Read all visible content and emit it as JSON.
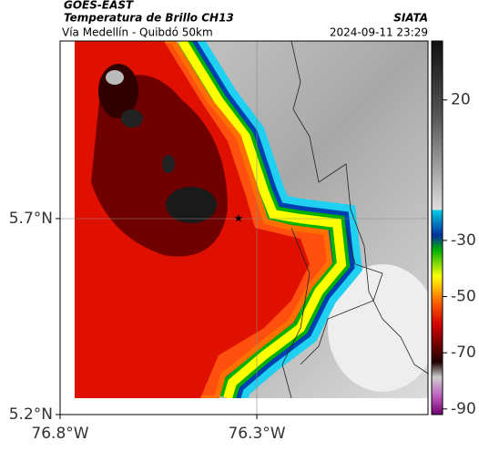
{
  "header": {
    "satellite": "GOES-EAST",
    "product": "Temperatura de Brillo CH13",
    "region": "Vía Medellín - Quibdó 50km",
    "source": "SIATA",
    "datetime": "2024-09-11 23:29"
  },
  "map": {
    "xlim": [
      -76.8,
      -75.865
    ],
    "ylim": [
      5.2,
      6.153
    ],
    "xticks": [
      {
        "value": -76.8,
        "label": "76.8°W"
      },
      {
        "value": -76.3,
        "label": "76.3°W"
      }
    ],
    "yticks": [
      {
        "value": 5.2,
        "label": "5.2°N"
      },
      {
        "value": 5.7,
        "label": "5.7°N"
      }
    ]
  },
  "colorbar": {
    "lim": [
      -92,
      41
    ],
    "ticks": [
      20,
      -30,
      -50,
      -70,
      -90
    ]
  }
}
